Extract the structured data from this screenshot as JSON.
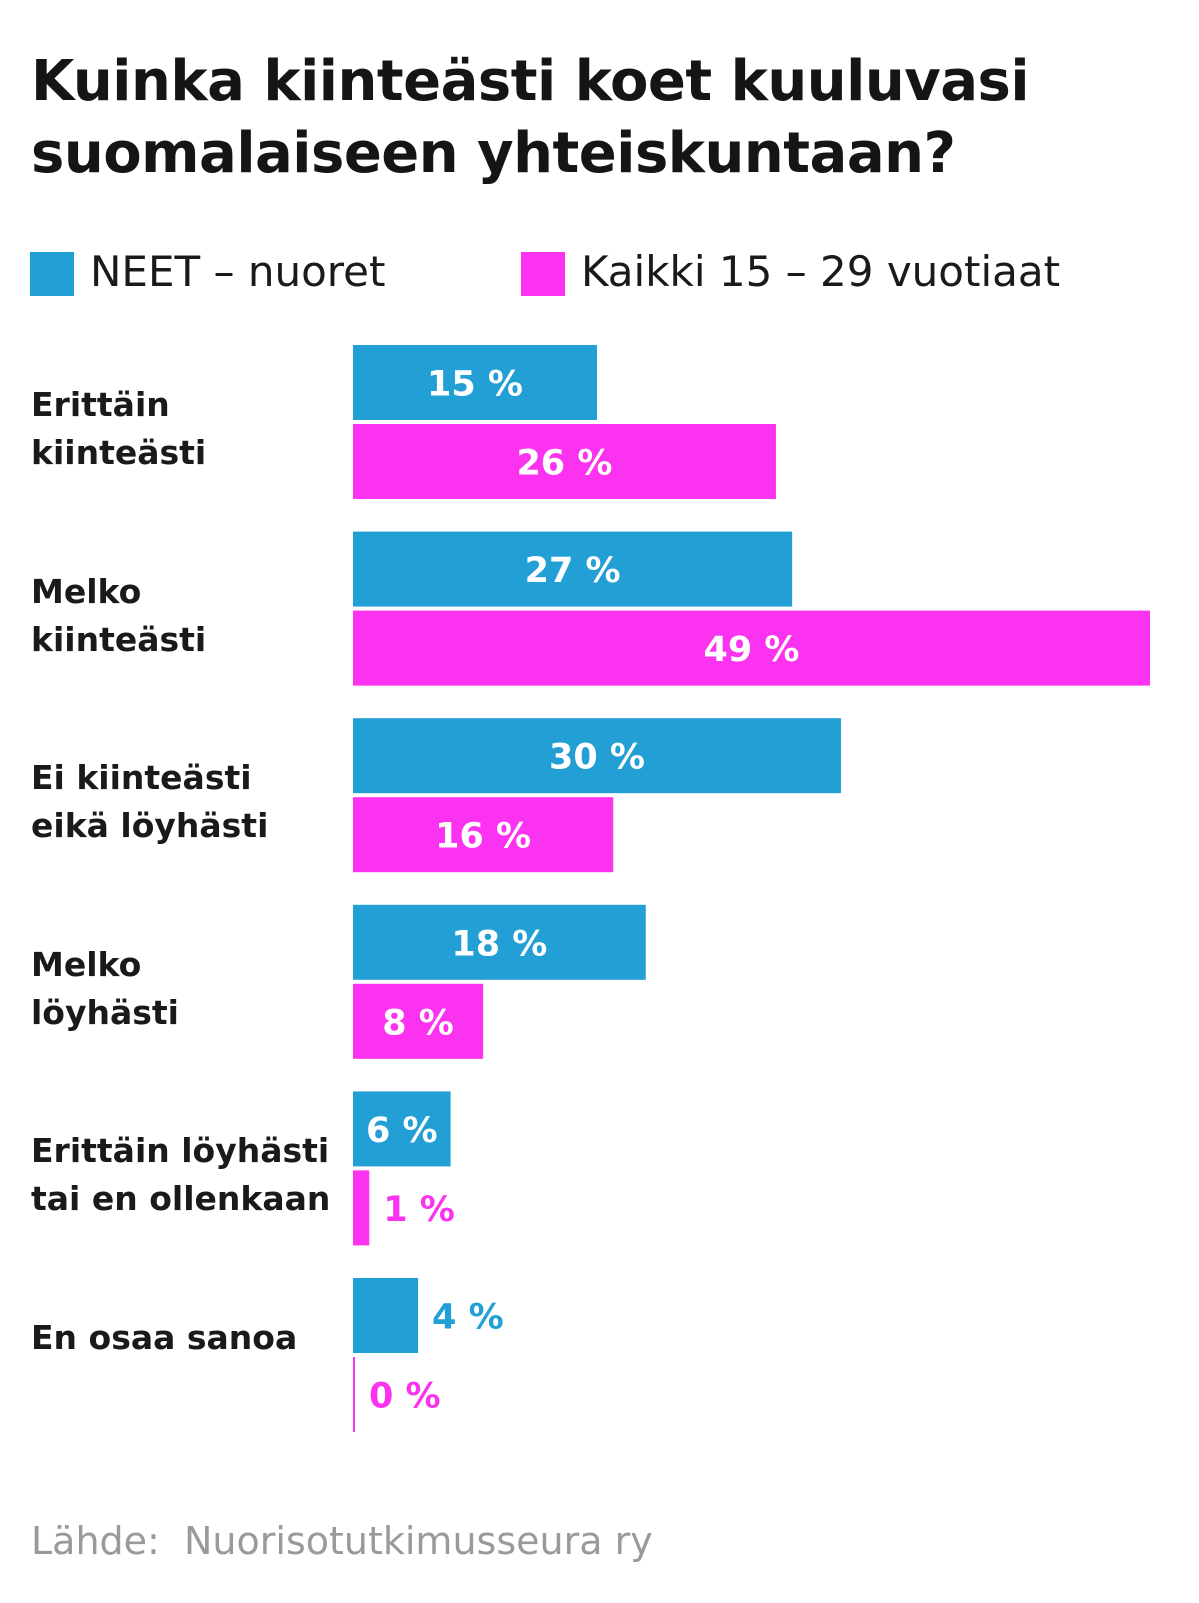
{
  "title": "Kuinka kiinteästi koet kuuluvasi suomalaiseen yhteiskuntaan?",
  "source": "Lähde:  Nuorisotutkimusseura ry",
  "colors": {
    "neet": "#229fd5",
    "kaikki": "#fb32ef",
    "inside_label": "#ffffff"
  },
  "chart_data": {
    "type": "bar",
    "orientation": "horizontal",
    "title": "Kuinka kiinteästi koet kuuluvasi suomalaiseen yhteiskuntaan?",
    "xlim": [
      0,
      49
    ],
    "grid": false,
    "legend_position": "top",
    "categories": [
      "Erittäin\nkiinteästi",
      "Melko\nkiinteästi",
      "Ei kiinteästi\neikä löyhästi",
      "Melko\nlöyhästi",
      "Erittäin löyhästi\ntai en ollenkaan",
      "En osaa sanoa"
    ],
    "series": [
      {
        "name": "NEET – nuoret",
        "color": "#229fd5",
        "values": [
          15,
          27,
          30,
          18,
          6,
          4
        ],
        "labels": [
          "15 %",
          "27 %",
          "30 %",
          "18 %",
          "6 %",
          "4 %"
        ]
      },
      {
        "name": "Kaikki 15 – 29 vuotiaat",
        "color": "#fb32ef",
        "values": [
          26,
          49,
          16,
          8,
          1,
          0
        ],
        "labels": [
          "26 %",
          "49 %",
          "16 %",
          "8 %",
          "1 %",
          "0 %"
        ]
      }
    ]
  }
}
